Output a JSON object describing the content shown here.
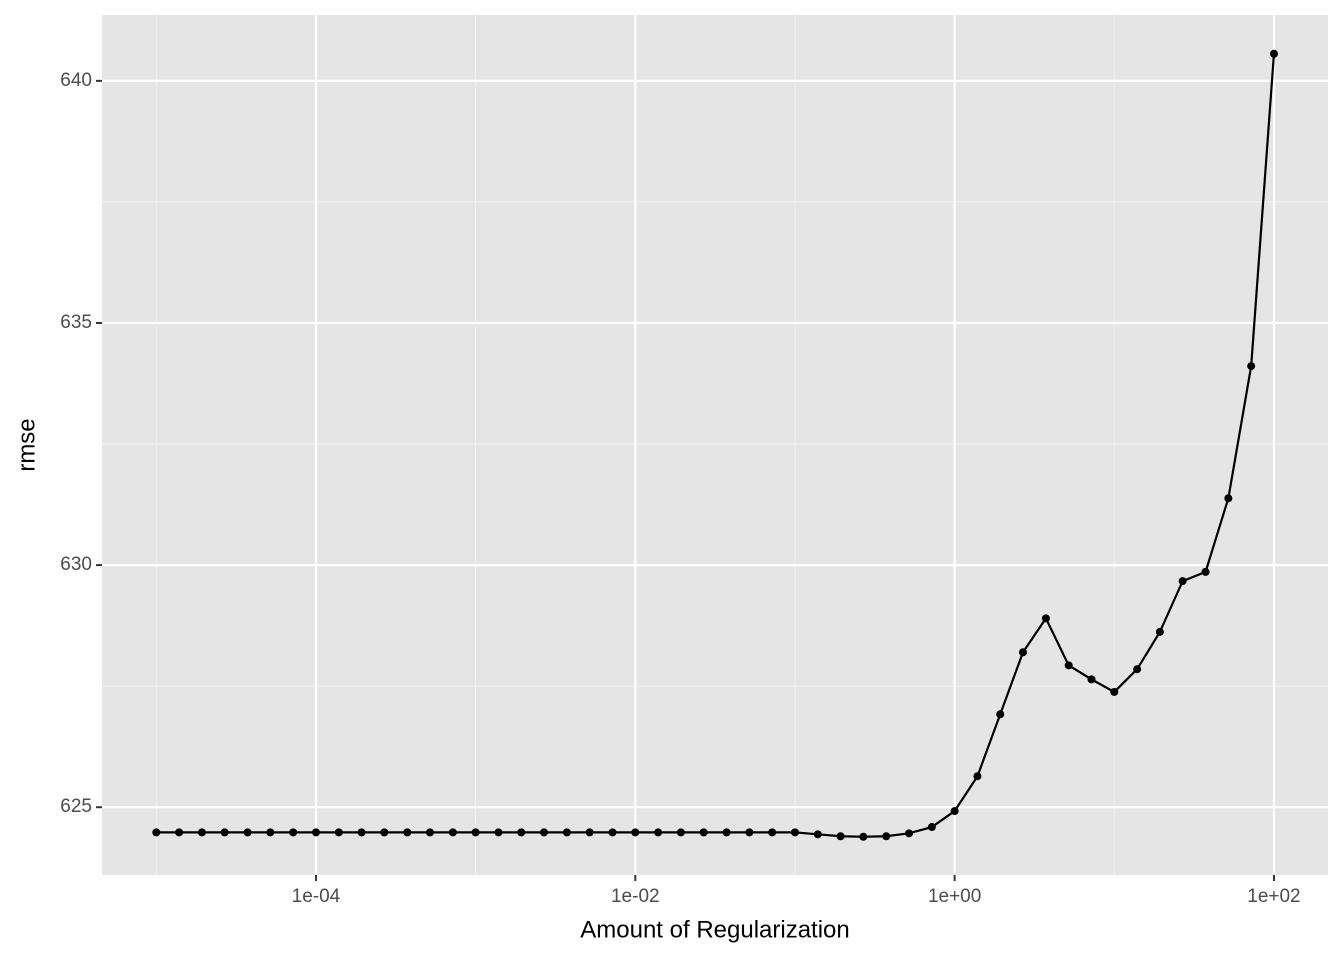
{
  "chart_data": {
    "type": "line",
    "xlabel": "Amount of Regularization",
    "ylabel": "rmse",
    "x": [
      1e-05,
      1.39e-05,
      1.93e-05,
      2.68e-05,
      3.73e-05,
      5.18e-05,
      7.2e-05,
      0.0001,
      0.000139,
      0.000193,
      0.000268,
      0.000373,
      0.000518,
      0.00072,
      0.001,
      0.00139,
      0.00193,
      0.00268,
      0.00373,
      0.00518,
      0.0072,
      0.01,
      0.0139,
      0.0193,
      0.0268,
      0.0373,
      0.0518,
      0.072,
      0.1,
      0.139,
      0.193,
      0.268,
      0.373,
      0.518,
      0.72,
      1,
      1.39,
      1.93,
      2.68,
      3.73,
      5.18,
      7.2,
      10,
      13.9,
      19.3,
      26.8,
      37.3,
      51.8,
      72,
      100
    ],
    "values": [
      624.48,
      624.48,
      624.48,
      624.48,
      624.48,
      624.48,
      624.48,
      624.48,
      624.48,
      624.48,
      624.48,
      624.48,
      624.48,
      624.48,
      624.48,
      624.48,
      624.48,
      624.48,
      624.48,
      624.48,
      624.48,
      624.48,
      624.48,
      624.48,
      624.48,
      624.48,
      624.48,
      624.48,
      624.48,
      624.44,
      624.4,
      624.39,
      624.4,
      624.46,
      624.59,
      624.92,
      625.64,
      626.92,
      628.2,
      628.9,
      627.93,
      627.64,
      627.38,
      627.85,
      628.62,
      629.67,
      629.86,
      631.38,
      634.11,
      640.56
    ],
    "color": "#000000",
    "xscale": "log",
    "xlim": [
      4.57e-06,
      218
    ],
    "ylim": [
      623.6,
      641.36
    ],
    "xticks": [
      {
        "value": 0.0001,
        "label": "1e-04"
      },
      {
        "value": 0.01,
        "label": "1e-02"
      },
      {
        "value": 1,
        "label": "1e+00"
      },
      {
        "value": 100,
        "label": "1e+02"
      }
    ],
    "yticks": [
      625,
      630,
      635,
      640
    ],
    "grid": true
  }
}
